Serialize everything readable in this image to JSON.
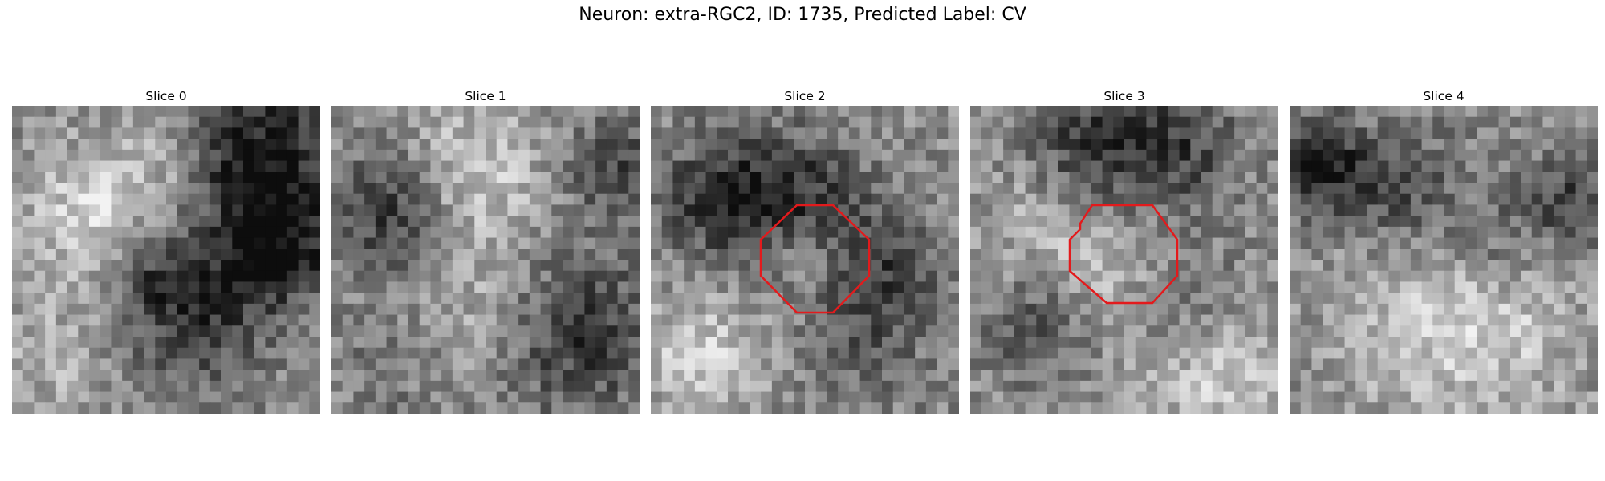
{
  "figure": {
    "title": "Neuron: extra-RGC2, ID: 1735, Predicted Label: CV"
  },
  "slices": [
    {
      "title": "Slice 0",
      "seed": 11,
      "has_roi": false
    },
    {
      "title": "Slice 1",
      "seed": 23,
      "has_roi": false
    },
    {
      "title": "Slice 2",
      "seed": 37,
      "has_roi": true
    },
    {
      "title": "Slice 3",
      "seed": 51,
      "has_roi": true
    },
    {
      "title": "Slice 4",
      "seed": 73,
      "has_roi": false
    }
  ],
  "roi_color": "#e31a1c",
  "colormap": "grayscale"
}
